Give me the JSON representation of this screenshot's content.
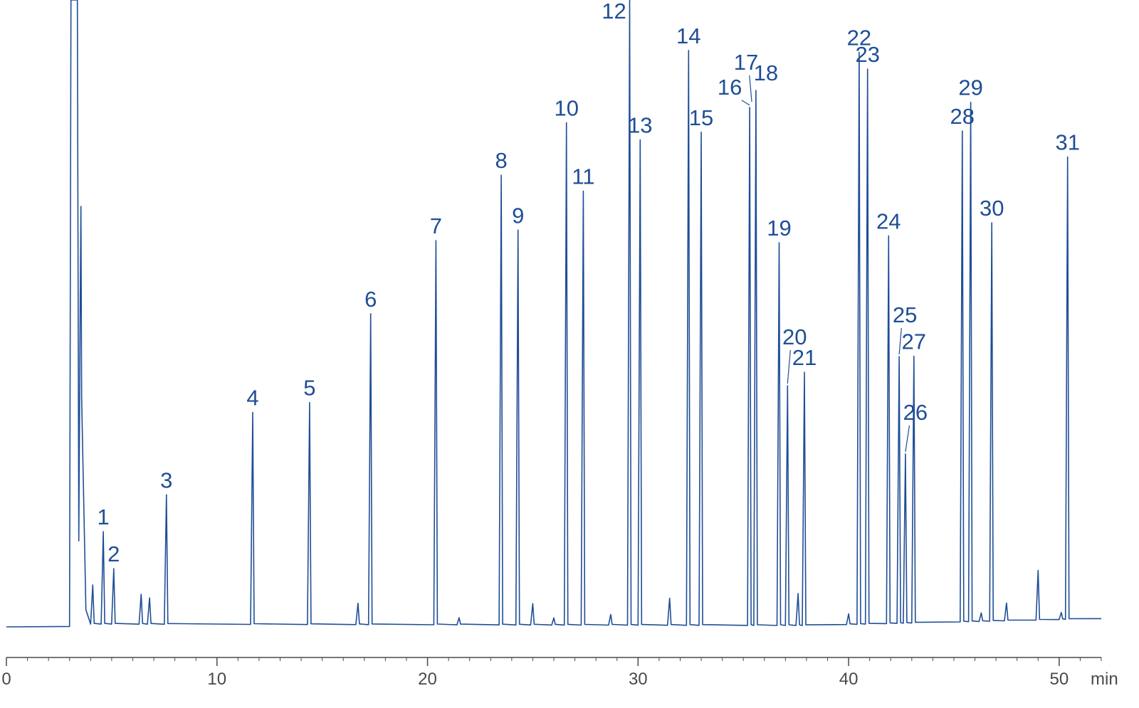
{
  "chart_data": {
    "type": "line",
    "title": "",
    "xlabel": "min",
    "ylabel": "",
    "xlim": [
      0,
      52
    ],
    "x_ticks": [
      0,
      10,
      20,
      30,
      40,
      50
    ],
    "x_tick_labels": [
      "0",
      "10",
      "20",
      "30",
      "40",
      "50"
    ],
    "x_unit": "min",
    "grid": false,
    "line_color": "#1f4e96",
    "axis_color": "#4a4a4a",
    "solvent_front": {
      "x": 3.1,
      "offscale": true
    },
    "peaks": [
      {
        "label": "1",
        "rt": 4.6,
        "height": 130
      },
      {
        "label": "2",
        "rt": 5.1,
        "height": 78
      },
      {
        "label": "3",
        "rt": 7.6,
        "height": 182
      },
      {
        "label": "4",
        "rt": 11.7,
        "height": 298
      },
      {
        "label": "5",
        "rt": 14.4,
        "height": 312
      },
      {
        "label": "6",
        "rt": 17.3,
        "height": 437
      },
      {
        "label": "7",
        "rt": 20.4,
        "height": 540
      },
      {
        "label": "8",
        "rt": 23.5,
        "height": 632
      },
      {
        "label": "9",
        "rt": 24.3,
        "height": 555
      },
      {
        "label": "10",
        "rt": 26.6,
        "height": 706
      },
      {
        "label": "11",
        "rt": 27.4,
        "height": 610
      },
      {
        "label": "12",
        "rt": 29.6,
        "height": 880
      },
      {
        "label": "13",
        "rt": 30.1,
        "height": 682
      },
      {
        "label": "14",
        "rt": 32.4,
        "height": 808
      },
      {
        "label": "15",
        "rt": 33.0,
        "height": 693
      },
      {
        "label": "16",
        "rt": 35.3,
        "height": 728
      },
      {
        "label": "17",
        "rt": 35.4,
        "height": 733
      },
      {
        "label": "18",
        "rt": 35.6,
        "height": 752
      },
      {
        "label": "19",
        "rt": 36.7,
        "height": 538
      },
      {
        "label": "20",
        "rt": 37.1,
        "height": 337
      },
      {
        "label": "21",
        "rt": 37.9,
        "height": 356
      },
      {
        "label": "22",
        "rt": 40.5,
        "height": 804
      },
      {
        "label": "23",
        "rt": 40.9,
        "height": 780
      },
      {
        "label": "24",
        "rt": 41.9,
        "height": 545
      },
      {
        "label": "25",
        "rt": 42.4,
        "height": 375
      },
      {
        "label": "26",
        "rt": 42.7,
        "height": 238
      },
      {
        "label": "27",
        "rt": 43.1,
        "height": 375
      },
      {
        "label": "28",
        "rt": 45.4,
        "height": 690
      },
      {
        "label": "29",
        "rt": 45.8,
        "height": 730
      },
      {
        "label": "30",
        "rt": 46.8,
        "height": 560
      },
      {
        "label": "31",
        "rt": 50.4,
        "height": 650
      }
    ],
    "minor_peaks": [
      {
        "rt": 3.6,
        "height": 80
      },
      {
        "rt": 3.9,
        "height": 35
      },
      {
        "rt": 4.1,
        "height": 55
      },
      {
        "rt": 4.8,
        "height": 25
      },
      {
        "rt": 6.4,
        "height": 42
      },
      {
        "rt": 6.8,
        "height": 37
      },
      {
        "rt": 16.7,
        "height": 30
      },
      {
        "rt": 21.5,
        "height": 10
      },
      {
        "rt": 25.0,
        "height": 30
      },
      {
        "rt": 26.0,
        "height": 10
      },
      {
        "rt": 28.7,
        "height": 15
      },
      {
        "rt": 31.5,
        "height": 38
      },
      {
        "rt": 37.6,
        "height": 45
      },
      {
        "rt": 40.0,
        "height": 15
      },
      {
        "rt": 46.3,
        "height": 12
      },
      {
        "rt": 47.5,
        "height": 25
      },
      {
        "rt": 49.0,
        "height": 70
      },
      {
        "rt": 50.1,
        "height": 10
      }
    ]
  }
}
